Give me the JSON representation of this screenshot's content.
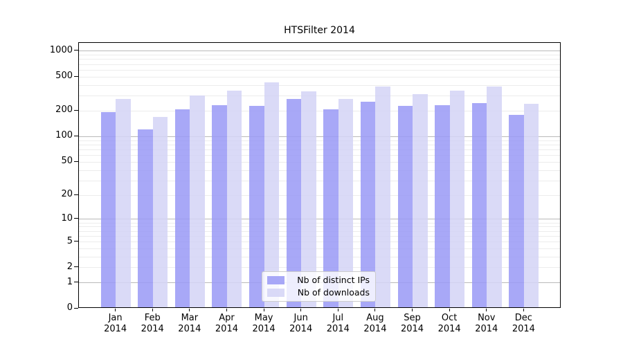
{
  "title": "HTSFilter 2014",
  "chart_data": {
    "type": "bar",
    "title": "HTSFilter 2014",
    "categories": [
      "Jan 2014",
      "Feb 2014",
      "Mar 2014",
      "Apr 2014",
      "May 2014",
      "Jun 2014",
      "Jul 2014",
      "Aug 2014",
      "Sep 2014",
      "Oct 2014",
      "Nov 2014",
      "Dec 2014"
    ],
    "series": [
      {
        "name": "Nb of distinct IPs",
        "color": "rgba(153,153,246,0.85)",
        "solid_color": "#a9a9f4",
        "values": [
          190,
          120,
          205,
          228,
          224,
          270,
          205,
          254,
          227,
          231,
          242,
          177
        ]
      },
      {
        "name": "Nb of downloads",
        "color": "rgba(212,212,246,0.85)",
        "solid_color": "#dadaf7",
        "values": [
          272,
          167,
          296,
          340,
          425,
          336,
          270,
          380,
          309,
          337,
          380,
          239
        ]
      }
    ],
    "yscale": "log1p",
    "ylim": [
      0,
      1255
    ],
    "yticks": [
      1000,
      500,
      200,
      100,
      50,
      20,
      10,
      5,
      2,
      1,
      0
    ],
    "grid": true,
    "gridline_major_values": [
      1000,
      100,
      10,
      1
    ],
    "legend_position": "lower center",
    "colors": {
      "grid_major": "#b9b9b9",
      "grid_minor": "#ececec",
      "axis": "#000000",
      "background": "#ffffff"
    }
  }
}
